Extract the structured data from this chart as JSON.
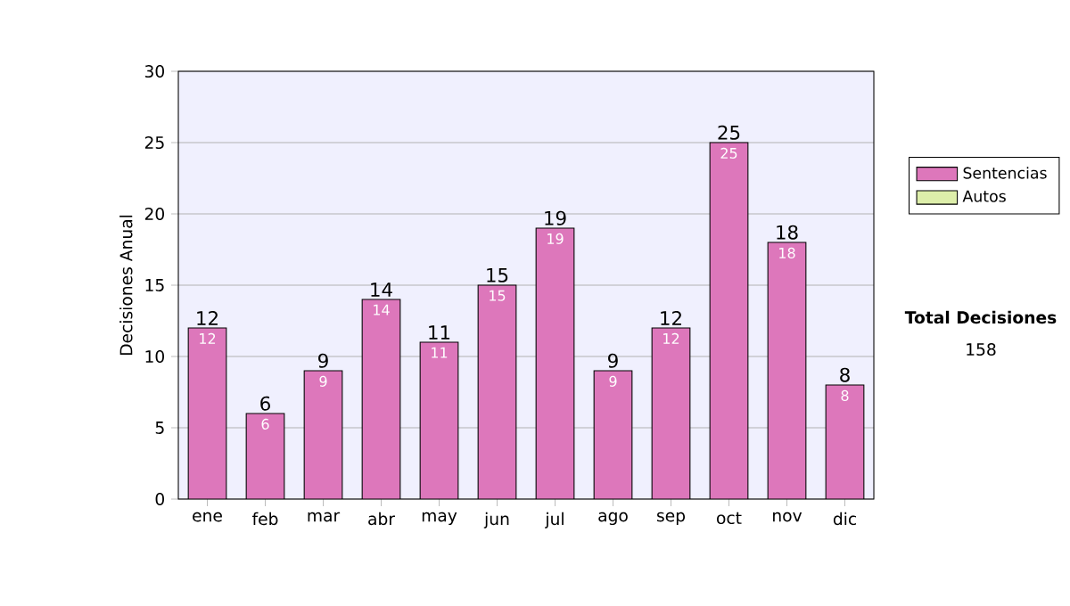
{
  "chart_data": {
    "type": "bar",
    "stacked": true,
    "ylabel": "Decisiones Anual",
    "categories": [
      "ene",
      "feb",
      "mar",
      "abr",
      "may",
      "jun",
      "jul",
      "ago",
      "sep",
      "oct",
      "nov",
      "dic"
    ],
    "series": [
      {
        "name": "Sentencias",
        "color": "#dd77bb",
        "values": [
          12,
          6,
          9,
          14,
          11,
          15,
          19,
          9,
          12,
          25,
          18,
          8
        ],
        "value_labels": [
          "12",
          "6",
          "9",
          "14",
          "11",
          "15",
          "19",
          "9",
          "12",
          "25",
          "18",
          "8"
        ]
      },
      {
        "name": "Autos",
        "color": "#ddeeaa",
        "values": [
          0,
          0,
          0,
          0,
          0,
          0,
          0,
          0,
          0,
          0,
          0,
          0
        ]
      }
    ],
    "totals": [
      "12",
      "6",
      "9",
      "14",
      "11",
      "15",
      "19",
      "9",
      "12",
      "25",
      "18",
      "8"
    ],
    "ylim": [
      0,
      30
    ],
    "yticks": [
      0,
      5,
      10,
      15,
      20,
      25,
      30
    ],
    "grid": "y",
    "legend": "right",
    "annotations": [
      "Total Decisiones",
      "158"
    ]
  }
}
